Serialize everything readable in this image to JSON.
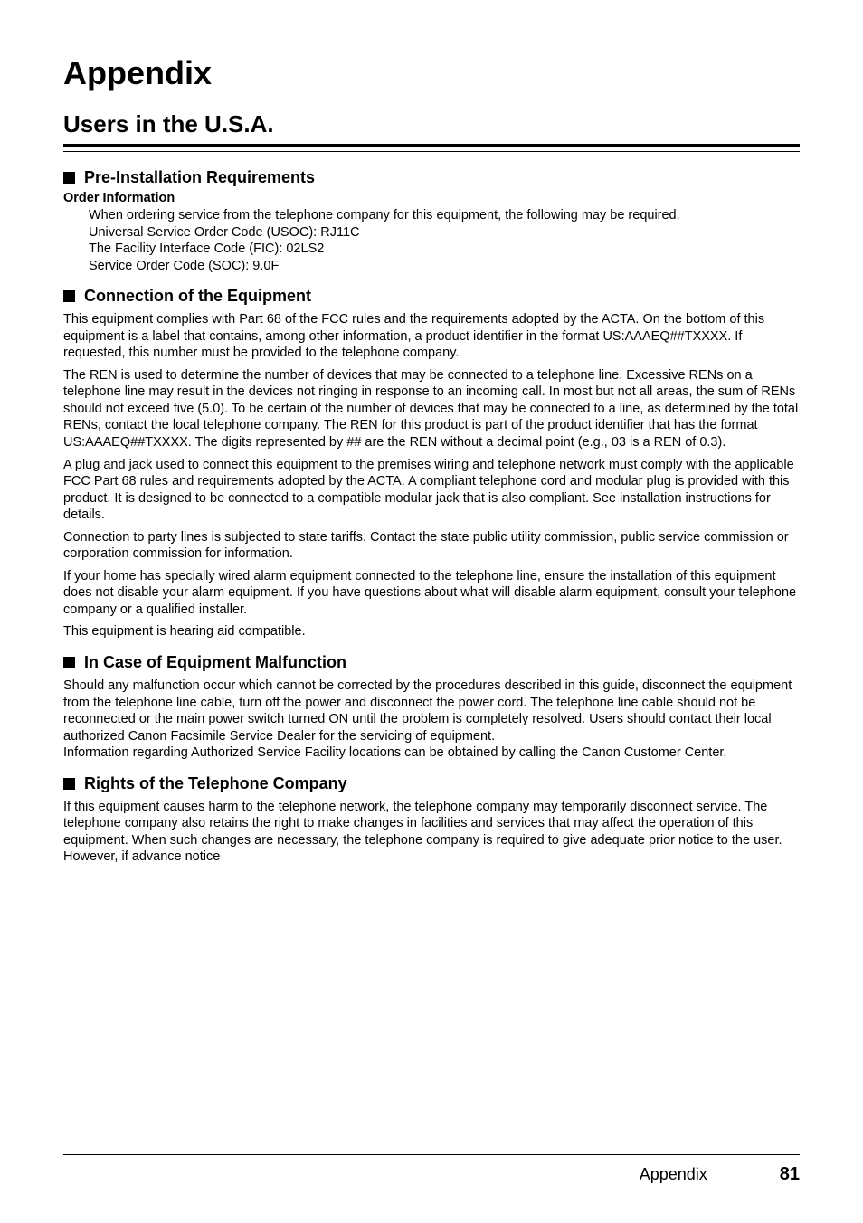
{
  "chapter_title": "Appendix",
  "section_title": "Users in the U.S.A.",
  "sub1": {
    "heading": "Pre-Installation Requirements",
    "order_label": "Order Information",
    "body": "When ordering service from the telephone company for this equipment, the following may be required.\nUniversal Service Order Code (USOC): RJ11C\nThe Facility Interface Code (FIC): 02LS2\nService Order Code (SOC): 9.0F"
  },
  "sub2": {
    "heading": "Connection of the Equipment",
    "p1": "This equipment complies with Part 68 of the FCC rules and the requirements adopted by the ACTA. On the bottom of this equipment is a label that contains, among other information, a product identifier in the format US:AAAEQ##TXXXX. If requested, this number must be provided to the telephone company.",
    "p2": "The REN is used to determine the number of devices that may be connected to a telephone line. Excessive RENs on a telephone line may result in the devices not ringing in response to an incoming call. In most but not all areas, the sum of RENs should not exceed five (5.0). To be certain of the number of devices that may be connected to a line, as determined by the total RENs, contact the local telephone company. The REN for this product is part of the product identifier that has the format US:AAAEQ##TXXXX. The digits represented by ## are the REN without a decimal point (e.g., 03 is a REN of 0.3).",
    "p3": "A plug and jack used to connect this equipment to the premises wiring and telephone network must comply with the applicable FCC Part 68 rules and requirements adopted by the ACTA. A compliant telephone cord and modular plug is provided with this product. It is designed to be connected to a compatible modular jack that is also compliant. See installation instructions for details.",
    "p4": "Connection to party lines is subjected to state tariffs. Contact the state public utility commission, public service commission or corporation commission for information.",
    "p5": "If your home has specially wired alarm equipment connected to the telephone line, ensure the installation of this equipment does not disable your alarm equipment. If you have questions about what will disable alarm equipment, consult your telephone company or a qualified installer.",
    "p6": "This equipment is hearing aid compatible."
  },
  "sub3": {
    "heading": "In Case of Equipment Malfunction",
    "p1": "Should any malfunction occur which cannot be corrected by the procedures described in this guide, disconnect the equipment from the telephone line cable, turn off the power and disconnect the power cord. The telephone line cable should not be reconnected or the main power switch turned ON until the problem is completely resolved. Users should contact their local authorized Canon Facsimile Service Dealer for the servicing of equipment.\nInformation regarding Authorized Service Facility locations can be obtained by calling the Canon Customer Center."
  },
  "sub4": {
    "heading": "Rights of the Telephone Company",
    "p1": "If this equipment causes harm to the telephone network, the telephone company may temporarily disconnect service. The telephone company also retains the right to make changes in facilities and services that may affect the operation of this equipment. When such changes are necessary, the telephone company is required to give adequate prior notice to the user. However, if advance notice"
  },
  "footer": {
    "label": "Appendix",
    "page": "81"
  }
}
